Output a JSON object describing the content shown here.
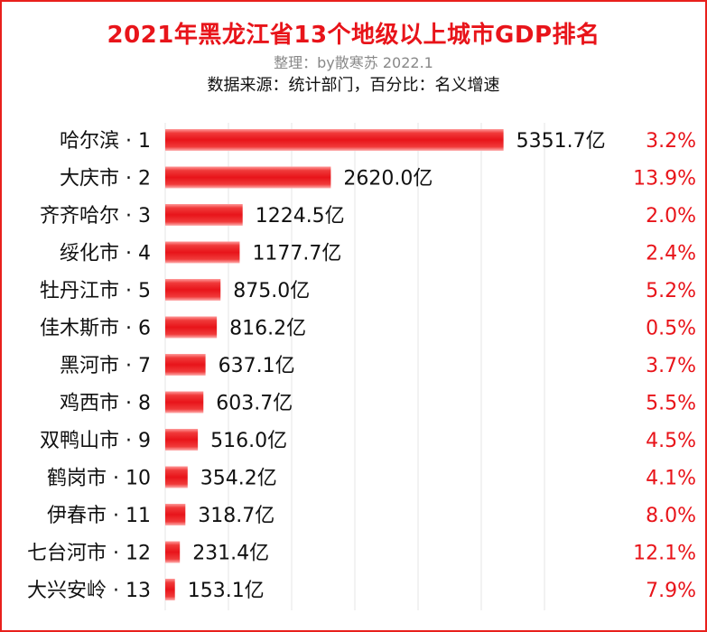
{
  "header": {
    "title": "2021年黑龙江省13个地级以上城市GDP排名",
    "subtitle": "整理：by散寒苏 2022.1",
    "source": "数据来源：统计部门，百分比：名义增速"
  },
  "colors": {
    "bar": "#ee1c1c",
    "bar_highlight": "#ff9a9a",
    "growth_text": "#e8141a",
    "title": "#e8141a",
    "grid": "#e6e6e6",
    "border": "#e8201c"
  },
  "chart_data": {
    "type": "bar",
    "orientation": "horizontal",
    "unit": "亿",
    "categories": [
      "哈尔滨 · 1",
      "大庆市 · 2",
      "齐齐哈尔 · 3",
      "绥化市 · 4",
      "牡丹江市 · 5",
      "佳木斯市 · 6",
      "黑河市 · 7",
      "鸡西市 · 8",
      "双鸭山市 · 9",
      "鹤岗市 · 10",
      "伊春市 · 11",
      "七台河市 · 12",
      "大兴安岭 · 13"
    ],
    "series": [
      {
        "values": [
          5351.7,
          2620.0,
          1224.5,
          1177.7,
          875.0,
          816.2,
          637.1,
          603.7,
          516.0,
          354.2,
          318.7,
          231.4,
          153.1
        ]
      }
    ],
    "value_labels": [
      "5351.7亿",
      "2620.0亿",
      "1224.5亿",
      "1177.7亿",
      "875.0亿",
      "816.2亿",
      "637.1亿",
      "603.7亿",
      "516.0亿",
      "354.2亿",
      "318.7亿",
      "231.4亿",
      "153.1亿"
    ],
    "growth_labels": [
      "3.2%",
      "13.9%",
      "2.0%",
      "2.4%",
      "5.2%",
      "0.5%",
      "3.7%",
      "5.5%",
      "4.5%",
      "4.1%",
      "8.0%",
      "12.1%",
      "7.9%"
    ],
    "xlim": [
      0,
      6000
    ],
    "grid": true,
    "legend": "none"
  }
}
